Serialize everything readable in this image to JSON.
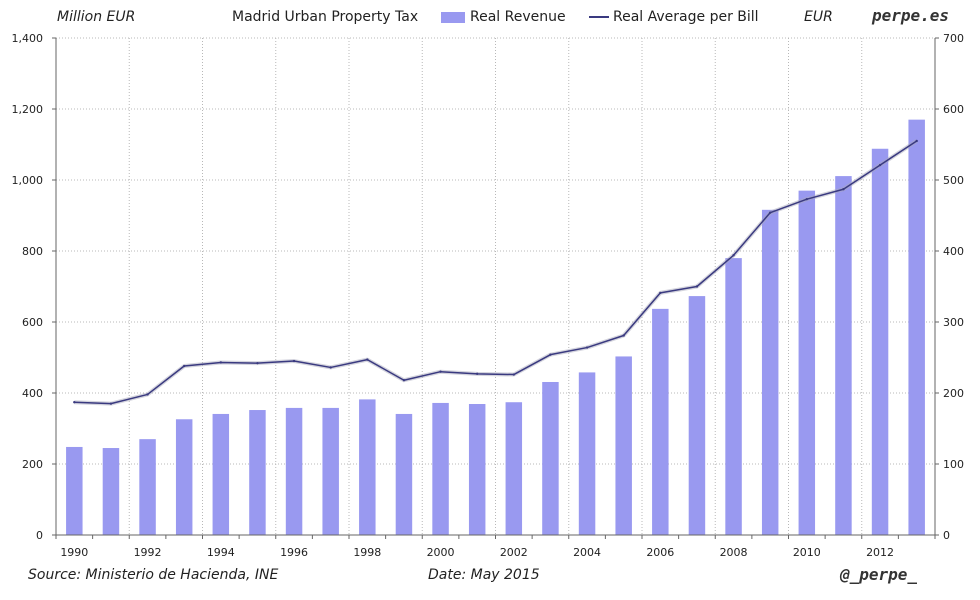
{
  "header": {
    "left_unit": "Million EUR",
    "title": "Madrid Urban Property Tax",
    "right_unit": "EUR",
    "brand": "perpe.es"
  },
  "legend": {
    "bar_label": "Real Revenue",
    "line_label": "Real Average per Bill"
  },
  "footer": {
    "source": "Source: Ministerio de Hacienda, INE",
    "date": "Date: May 2015",
    "handle": "@_perpe_"
  },
  "colors": {
    "bar": "#9999f0",
    "line": "#3a3a80",
    "grid": "#b8b8b8",
    "axis": "#666666",
    "text": "#222222"
  },
  "chart_data": {
    "type": "bar",
    "title": "Madrid Urban Property Tax",
    "x": [
      1990,
      1991,
      1992,
      1993,
      1994,
      1995,
      1996,
      1997,
      1998,
      1999,
      2000,
      2001,
      2002,
      2003,
      2004,
      2005,
      2006,
      2007,
      2008,
      2009,
      2010,
      2011,
      2012,
      2013
    ],
    "x_tick_labels": [
      "1990",
      "1992",
      "1994",
      "1996",
      "1998",
      "2000",
      "2002",
      "2004",
      "2006",
      "2008",
      "2010",
      "2012"
    ],
    "y_left": {
      "label": "Million EUR",
      "range": [
        0,
        1400
      ],
      "ticks": [
        "0",
        "200",
        "400",
        "600",
        "800",
        "1,000",
        "1,200",
        "1,400"
      ]
    },
    "y_right": {
      "label": "EUR",
      "range": [
        0,
        700
      ],
      "ticks": [
        "0",
        "100",
        "200",
        "300",
        "400",
        "500",
        "600",
        "700"
      ]
    },
    "grid": true,
    "legend_position": "top",
    "series": [
      {
        "name": "Real Revenue",
        "type": "bar",
        "axis": "left",
        "values": [
          248,
          245,
          270,
          326,
          341,
          352,
          358,
          358,
          382,
          341,
          372,
          369,
          374,
          431,
          458,
          503,
          637,
          673,
          780,
          916,
          970,
          1011,
          1088,
          1170
        ]
      },
      {
        "name": "Real Average per Bill",
        "type": "line",
        "axis": "right",
        "values": [
          187,
          185,
          198,
          238,
          243,
          242,
          245,
          236,
          247,
          218,
          230,
          227,
          226,
          254,
          264,
          281,
          341,
          350,
          394,
          454,
          473,
          487,
          521,
          555
        ]
      }
    ]
  }
}
